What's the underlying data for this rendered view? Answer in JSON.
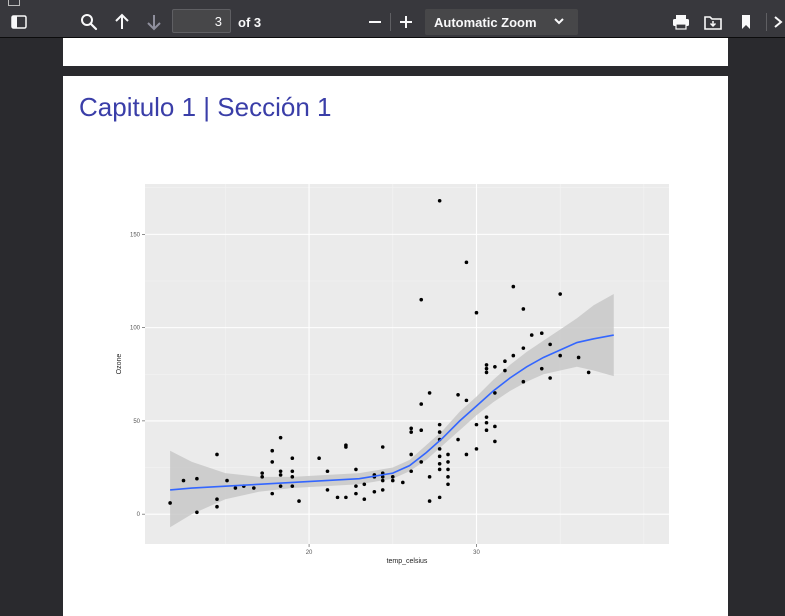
{
  "toolbar": {
    "page_number": "3",
    "page_count_label": "of 3",
    "zoom_label": "Automatic Zoom"
  },
  "document": {
    "title": "Capitulo 1 | Sección 1"
  },
  "colors": {
    "title": "#3a3ea8",
    "smooth_line": "#3366ff",
    "confidence_band": "#c8c8c8",
    "panel_background": "#ebebeb"
  },
  "chart_data": {
    "type": "scatter",
    "xlabel": "temp_celsius",
    "ylabel": "Ozone",
    "xlim": [
      10.2,
      41.5
    ],
    "ylim": [
      -16,
      177
    ],
    "x_ticks": [
      20,
      30
    ],
    "y_ticks": [
      0,
      50,
      100,
      150
    ],
    "grid": true,
    "points": [
      [
        11.7,
        6
      ],
      [
        12.5,
        18
      ],
      [
        13.3,
        19
      ],
      [
        13.3,
        1
      ],
      [
        14.5,
        32
      ],
      [
        14.5,
        4
      ],
      [
        14.5,
        8
      ],
      [
        15.1,
        18
      ],
      [
        15.6,
        14
      ],
      [
        16.1,
        15
      ],
      [
        16.7,
        14
      ],
      [
        17.2,
        20
      ],
      [
        17.2,
        22
      ],
      [
        17.8,
        11
      ],
      [
        17.8,
        28
      ],
      [
        17.8,
        34
      ],
      [
        18.3,
        15
      ],
      [
        18.3,
        21
      ],
      [
        18.3,
        23
      ],
      [
        18.3,
        41
      ],
      [
        19.0,
        15
      ],
      [
        19.0,
        20
      ],
      [
        19.0,
        23
      ],
      [
        19.0,
        30
      ],
      [
        19.4,
        7
      ],
      [
        20.6,
        30
      ],
      [
        21.1,
        13
      ],
      [
        21.1,
        23
      ],
      [
        21.7,
        9
      ],
      [
        22.2,
        9
      ],
      [
        22.2,
        36
      ],
      [
        22.2,
        37
      ],
      [
        22.8,
        11
      ],
      [
        22.8,
        15
      ],
      [
        22.8,
        24
      ],
      [
        23.3,
        8
      ],
      [
        23.3,
        16
      ],
      [
        23.9,
        12
      ],
      [
        23.9,
        20
      ],
      [
        23.9,
        21
      ],
      [
        24.4,
        13
      ],
      [
        24.4,
        18
      ],
      [
        24.4,
        20
      ],
      [
        24.4,
        22
      ],
      [
        24.4,
        36
      ],
      [
        25.0,
        18
      ],
      [
        25.0,
        20
      ],
      [
        25.6,
        17
      ],
      [
        26.1,
        23
      ],
      [
        26.1,
        32
      ],
      [
        26.1,
        44
      ],
      [
        26.1,
        46
      ],
      [
        26.7,
        28
      ],
      [
        26.7,
        45
      ],
      [
        26.7,
        59
      ],
      [
        26.7,
        115
      ],
      [
        27.2,
        7
      ],
      [
        27.2,
        20
      ],
      [
        27.2,
        65
      ],
      [
        27.8,
        9
      ],
      [
        27.8,
        24
      ],
      [
        27.8,
        27
      ],
      [
        27.8,
        31
      ],
      [
        27.8,
        35
      ],
      [
        27.8,
        40
      ],
      [
        27.8,
        44
      ],
      [
        27.8,
        48
      ],
      [
        27.8,
        168
      ],
      [
        28.3,
        16
      ],
      [
        28.3,
        20
      ],
      [
        28.3,
        24
      ],
      [
        28.3,
        28
      ],
      [
        28.3,
        32
      ],
      [
        28.9,
        40
      ],
      [
        28.9,
        64
      ],
      [
        29.4,
        32
      ],
      [
        29.4,
        61
      ],
      [
        29.4,
        135
      ],
      [
        30.0,
        35
      ],
      [
        30.0,
        48
      ],
      [
        30.0,
        108
      ],
      [
        30.6,
        45
      ],
      [
        30.6,
        49
      ],
      [
        30.6,
        52
      ],
      [
        30.6,
        76
      ],
      [
        30.6,
        78
      ],
      [
        30.6,
        80
      ],
      [
        31.1,
        39
      ],
      [
        31.1,
        47
      ],
      [
        31.1,
        65
      ],
      [
        31.1,
        79
      ],
      [
        31.7,
        77
      ],
      [
        31.7,
        82
      ],
      [
        32.2,
        85
      ],
      [
        32.2,
        122
      ],
      [
        32.8,
        71
      ],
      [
        32.8,
        89
      ],
      [
        32.8,
        110
      ],
      [
        33.3,
        96
      ],
      [
        33.9,
        78
      ],
      [
        33.9,
        97
      ],
      [
        34.4,
        73
      ],
      [
        34.4,
        91
      ],
      [
        35.0,
        85
      ],
      [
        35.0,
        118
      ],
      [
        36.1,
        84
      ],
      [
        36.7,
        76
      ]
    ],
    "smooth_line": [
      [
        11.7,
        13
      ],
      [
        13,
        14
      ],
      [
        15,
        15
      ],
      [
        17,
        16
      ],
      [
        19,
        17
      ],
      [
        21,
        18
      ],
      [
        23,
        19
      ],
      [
        25,
        22
      ],
      [
        26,
        26
      ],
      [
        27,
        33
      ],
      [
        28,
        41
      ],
      [
        29,
        50
      ],
      [
        30,
        58
      ],
      [
        31,
        66
      ],
      [
        32,
        73
      ],
      [
        33,
        79
      ],
      [
        34,
        84
      ],
      [
        35,
        88
      ],
      [
        36,
        92
      ],
      [
        37,
        94
      ],
      [
        38.2,
        96
      ]
    ],
    "band_upper": [
      [
        11.7,
        34
      ],
      [
        13,
        28
      ],
      [
        15,
        22
      ],
      [
        17,
        20
      ],
      [
        19,
        20
      ],
      [
        21,
        21
      ],
      [
        23,
        22
      ],
      [
        25,
        25
      ],
      [
        26,
        29
      ],
      [
        27,
        37
      ],
      [
        28,
        45
      ],
      [
        29,
        55
      ],
      [
        30,
        63
      ],
      [
        31,
        72
      ],
      [
        32,
        80
      ],
      [
        33,
        87
      ],
      [
        34,
        93
      ],
      [
        35,
        99
      ],
      [
        36,
        105
      ],
      [
        37,
        112
      ],
      [
        38.2,
        118
      ]
    ],
    "band_lower": [
      [
        11.7,
        -7
      ],
      [
        13,
        0
      ],
      [
        15,
        8
      ],
      [
        17,
        12
      ],
      [
        19,
        14
      ],
      [
        21,
        15
      ],
      [
        23,
        16
      ],
      [
        25,
        19
      ],
      [
        26,
        23
      ],
      [
        27,
        29
      ],
      [
        28,
        37
      ],
      [
        29,
        45
      ],
      [
        30,
        53
      ],
      [
        31,
        60
      ],
      [
        32,
        66
      ],
      [
        33,
        71
      ],
      [
        34,
        75
      ],
      [
        35,
        77
      ],
      [
        36,
        79
      ],
      [
        37,
        77
      ],
      [
        38.2,
        74
      ]
    ]
  }
}
